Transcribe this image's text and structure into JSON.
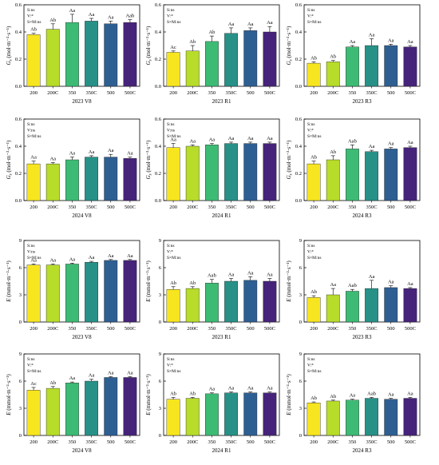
{
  "colors": [
    "#f7e51f",
    "#b7dc2a",
    "#3dbb74",
    "#279187",
    "#2e5f93",
    "#46237a"
  ],
  "chart_data": [
    {
      "type": "bar",
      "caption": "2023 V8",
      "ylabel": "Gs",
      "unit": "(mol·m⁻²·s⁻¹)",
      "ylim": [
        0,
        0.6
      ],
      "yticks": [
        0,
        0.2,
        0.4,
        0.6
      ],
      "categories": [
        "200",
        "200C",
        "350",
        "350C",
        "500",
        "500C"
      ],
      "values": [
        0.38,
        0.42,
        0.47,
        0.48,
        0.46,
        0.47
      ],
      "errors": [
        0.01,
        0.04,
        0.06,
        0.02,
        0.02,
        0.02
      ],
      "letters": [
        "Ab",
        "Ab",
        "Aa",
        "Aa",
        "Aa",
        "Aab"
      ],
      "stats": [
        "S:ns",
        "V:*",
        "S×M:ns"
      ]
    },
    {
      "type": "bar",
      "caption": "2023 R1",
      "ylabel": "Gs",
      "unit": "(mol·m⁻²·s⁻¹)",
      "ylim": [
        0,
        0.6
      ],
      "yticks": [
        0,
        0.2,
        0.4,
        0.6
      ],
      "categories": [
        "200",
        "200C",
        "350",
        "350C",
        "500",
        "500C"
      ],
      "values": [
        0.25,
        0.26,
        0.33,
        0.39,
        0.41,
        0.4
      ],
      "errors": [
        0.01,
        0.04,
        0.04,
        0.04,
        0.02,
        0.04
      ],
      "letters": [
        "Ac",
        "Ab",
        "Ab",
        "Aa",
        "Aa",
        "Aa"
      ],
      "stats": [
        "S:ns",
        "V:*",
        "S×M:ns"
      ]
    },
    {
      "type": "bar",
      "caption": "2023 R3",
      "ylabel": "Gs",
      "unit": "(mol·m⁻²·s⁻¹)",
      "ylim": [
        0,
        0.6
      ],
      "yticks": [
        0,
        0.2,
        0.4,
        0.6
      ],
      "categories": [
        "200",
        "200C",
        "350",
        "350C",
        "500",
        "500C"
      ],
      "values": [
        0.17,
        0.18,
        0.29,
        0.3,
        0.3,
        0.29
      ],
      "errors": [
        0.01,
        0.01,
        0.01,
        0.05,
        0.01,
        0.01
      ],
      "letters": [
        "Ab",
        "Ab",
        "Aa",
        "Aa",
        "Aa",
        "Aa"
      ],
      "stats": [
        "S:ns",
        "V:*",
        "S×M:ns"
      ]
    },
    {
      "type": "bar",
      "caption": "2024 V8",
      "ylabel": "Gs",
      "unit": "(mol·m⁻²·s⁻¹)",
      "ylim": [
        0,
        0.6
      ],
      "yticks": [
        0,
        0.2,
        0.4,
        0.6
      ],
      "categories": [
        "200",
        "200C",
        "350",
        "350C",
        "500",
        "500C"
      ],
      "values": [
        0.27,
        0.27,
        0.3,
        0.32,
        0.32,
        0.31
      ],
      "errors": [
        0.02,
        0.01,
        0.02,
        0.01,
        0.02,
        0.01
      ],
      "letters": [
        "Aa",
        "Aa",
        "Aa",
        "Aa",
        "Aa",
        "Aa"
      ],
      "stats": [
        "S:ns",
        "V:ns",
        "S×M:ns"
      ]
    },
    {
      "type": "bar",
      "caption": "2024 R1",
      "ylabel": "Gs",
      "unit": "(mol·m⁻²·s⁻¹)",
      "ylim": [
        0,
        0.6
      ],
      "yticks": [
        0,
        0.2,
        0.4,
        0.6
      ],
      "categories": [
        "200",
        "200C",
        "350",
        "350C",
        "500",
        "500C"
      ],
      "values": [
        0.39,
        0.4,
        0.41,
        0.42,
        0.42,
        0.42
      ],
      "errors": [
        0.03,
        0.01,
        0.01,
        0.01,
        0.01,
        0.01
      ],
      "letters": [
        "Aa",
        "Aa",
        "Aa",
        "Aa",
        "Aa",
        "Aa"
      ],
      "stats": [
        "S:ns",
        "V:ns",
        "S×M:ns"
      ]
    },
    {
      "type": "bar",
      "caption": "2024 R3",
      "ylabel": "Gs",
      "unit": "(mol·m⁻²·s⁻¹)",
      "ylim": [
        0,
        0.6
      ],
      "yticks": [
        0,
        0.2,
        0.4,
        0.6
      ],
      "categories": [
        "200",
        "200C",
        "350",
        "350C",
        "500",
        "500C"
      ],
      "values": [
        0.27,
        0.3,
        0.38,
        0.36,
        0.38,
        0.39
      ],
      "errors": [
        0.02,
        0.03,
        0.03,
        0.01,
        0.01,
        0.01
      ],
      "letters": [
        "Ab",
        "Ab",
        "Aab",
        "Aa",
        "Aa",
        "Aa"
      ],
      "stats": [
        "S:ns",
        "V:*",
        "S×M:ns"
      ]
    },
    {
      "type": "bar",
      "caption": "2023 V8",
      "ylabel": "E",
      "unit": "(mmol·m⁻²·s⁻¹)",
      "ylim": [
        0,
        9
      ],
      "yticks": [
        0,
        3,
        6,
        9
      ],
      "categories": [
        "200",
        "200C",
        "350",
        "350C",
        "500",
        "500C"
      ],
      "values": [
        6.3,
        6.3,
        6.4,
        6.6,
        6.8,
        6.8
      ],
      "errors": [
        0.1,
        0.1,
        0.1,
        0.1,
        0.1,
        0.1
      ],
      "letters": [
        "Aa",
        "Aa",
        "Aa",
        "Aa",
        "Aa",
        "Aa"
      ],
      "stats": [
        "S:ns",
        "V:ns",
        "S×M:ns"
      ]
    },
    {
      "type": "bar",
      "caption": "2023 R1",
      "ylabel": "E",
      "unit": "(mmol·m⁻²·s⁻¹)",
      "ylim": [
        0,
        9
      ],
      "yticks": [
        0,
        3,
        6,
        9
      ],
      "categories": [
        "200",
        "200C",
        "350",
        "350C",
        "500",
        "500C"
      ],
      "values": [
        3.6,
        3.7,
        4.3,
        4.5,
        4.6,
        4.5
      ],
      "errors": [
        0.3,
        0.2,
        0.4,
        0.3,
        0.4,
        0.3
      ],
      "letters": [
        "Ab",
        "Ab",
        "Aab",
        "Aa",
        "Aa",
        "Aa"
      ],
      "stats": [
        "S:ns",
        "V:*",
        "S×M:ns"
      ]
    },
    {
      "type": "bar",
      "caption": "2023 R3",
      "ylabel": "E",
      "unit": "(mmol·m⁻²·s⁻¹)",
      "ylim": [
        0,
        9
      ],
      "yticks": [
        0,
        3,
        6,
        9
      ],
      "categories": [
        "200",
        "200C",
        "350",
        "350C",
        "500",
        "500C"
      ],
      "values": [
        2.7,
        3.0,
        3.4,
        3.7,
        3.8,
        3.7
      ],
      "errors": [
        0.2,
        0.7,
        0.2,
        0.9,
        0.2,
        0.1
      ],
      "letters": [
        "Ab",
        "Aa",
        "Aab",
        "Aa",
        "Aa",
        "Aa"
      ],
      "stats": [
        "S:ns",
        "V:*",
        "S×M:ns"
      ]
    },
    {
      "type": "bar",
      "caption": "2024 V8",
      "ylabel": "E",
      "unit": "(mmol·m⁻²·s⁻¹)",
      "ylim": [
        0,
        9
      ],
      "yticks": [
        0,
        3,
        6,
        9
      ],
      "categories": [
        "200",
        "200C",
        "350",
        "350C",
        "500",
        "500C"
      ],
      "values": [
        5.0,
        5.2,
        5.8,
        6.0,
        6.4,
        6.4
      ],
      "errors": [
        0.3,
        0.2,
        0.1,
        0.2,
        0.1,
        0.1
      ],
      "letters": [
        "Ac",
        "Ab",
        "Aa",
        "Aa",
        "Aa",
        "Aa"
      ],
      "stats": [
        "S:ns",
        "V:*",
        "S×M:ns"
      ]
    },
    {
      "type": "bar",
      "caption": "2024 R1",
      "ylabel": "E",
      "unit": "(mmol·m⁻²·s⁻¹)",
      "ylim": [
        0,
        9
      ],
      "yticks": [
        0,
        3,
        6,
        9
      ],
      "categories": [
        "200",
        "200C",
        "350",
        "350C",
        "500",
        "500C"
      ],
      "values": [
        4.0,
        4.1,
        4.6,
        4.7,
        4.7,
        4.7
      ],
      "errors": [
        0.2,
        0.1,
        0.1,
        0.1,
        0.1,
        0.1
      ],
      "letters": [
        "Ab",
        "Ab",
        "Aa",
        "Aa",
        "Aa",
        "Aa"
      ],
      "stats": [
        "S:ns",
        "V:*",
        "S×M:ns"
      ]
    },
    {
      "type": "bar",
      "caption": "2024 R3",
      "ylabel": "E",
      "unit": "(mmol·m⁻²·s⁻¹)",
      "ylim": [
        0,
        9
      ],
      "yticks": [
        0,
        3,
        6,
        9
      ],
      "categories": [
        "200",
        "200C",
        "350",
        "350C",
        "500",
        "500C"
      ],
      "values": [
        3.6,
        3.8,
        3.9,
        4.1,
        4.0,
        4.1
      ],
      "errors": [
        0.1,
        0.1,
        0.1,
        0.1,
        0.1,
        0.1
      ],
      "letters": [
        "Ab",
        "Ab",
        "Aa",
        "Aab",
        "Aa",
        "Aa"
      ],
      "stats": [
        "S:ns",
        "V:*",
        "S×M:ns"
      ]
    }
  ]
}
